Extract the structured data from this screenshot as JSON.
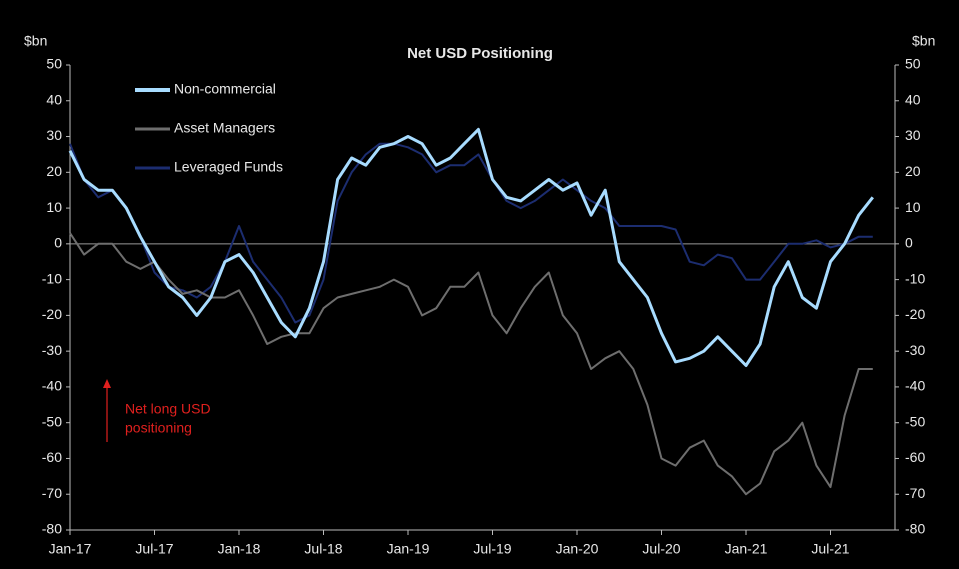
{
  "chart_data": {
    "type": "line",
    "title": "Net USD Positioning",
    "ylabel": "$bn",
    "y2label": "$bn",
    "x": [
      "Jan-17",
      "Feb-17",
      "Mar-17",
      "Apr-17",
      "May-17",
      "Jun-17",
      "Jul-17",
      "Aug-17",
      "Sep-17",
      "Oct-17",
      "Nov-17",
      "Dec-17",
      "Jan-18",
      "Feb-18",
      "Mar-18",
      "Apr-18",
      "May-18",
      "Jun-18",
      "Jul-18",
      "Aug-18",
      "Sep-18",
      "Oct-18",
      "Nov-18",
      "Dec-18",
      "Jan-19",
      "Feb-19",
      "Mar-19",
      "Apr-19",
      "May-19",
      "Jun-19",
      "Jul-19",
      "Aug-19",
      "Sep-19",
      "Oct-19",
      "Nov-19",
      "Dec-19",
      "Jan-20",
      "Feb-20",
      "Mar-20",
      "Apr-20",
      "May-20",
      "Jun-20",
      "Jul-20",
      "Aug-20",
      "Sep-20",
      "Oct-20",
      "Nov-20",
      "Dec-20",
      "Jan-21",
      "Feb-21",
      "Mar-21",
      "Apr-21",
      "May-21",
      "Jun-21",
      "Jul-21",
      "Aug-21",
      "Sep-21",
      "Oct-21"
    ],
    "xticks": [
      "Jan-17",
      "Jul-17",
      "Jan-18",
      "Jul-18",
      "Jan-19",
      "Jul-19",
      "Jan-20",
      "Jul-20",
      "Jan-21",
      "Jul-21"
    ],
    "series": [
      {
        "name": "Non-commercial",
        "color": "#a8dcff",
        "width": 3,
        "values": [
          26,
          18,
          15,
          15,
          10,
          2,
          -5,
          -12,
          -15,
          -20,
          -15,
          -5,
          -3,
          -8,
          -15,
          -22,
          -26,
          -18,
          -5,
          18,
          24,
          22,
          27,
          28,
          30,
          28,
          22,
          24,
          28,
          32,
          18,
          13,
          12,
          15,
          18,
          15,
          17,
          8,
          15,
          -5,
          -10,
          -15,
          -25,
          -33,
          -32,
          -30,
          -26,
          -30,
          -34,
          -28,
          -12,
          -5,
          -15,
          -18,
          -5,
          0,
          8,
          13
        ]
      },
      {
        "name": "Asset Managers",
        "color": "#6e6e6e",
        "width": 2,
        "values": [
          3,
          -3,
          0,
          0,
          -5,
          -7,
          -5,
          -10,
          -14,
          -13,
          -15,
          -15,
          -13,
          -20,
          -28,
          -26,
          -25,
          -25,
          -18,
          -15,
          -14,
          -13,
          -12,
          -10,
          -12,
          -20,
          -18,
          -12,
          -12,
          -8,
          -20,
          -25,
          -18,
          -12,
          -8,
          -20,
          -25,
          -35,
          -32,
          -30,
          -35,
          -45,
          -60,
          -62,
          -57,
          -55,
          -62,
          -65,
          -70,
          -67,
          -58,
          -55,
          -50,
          -62,
          -68,
          -48,
          -35,
          -35
        ]
      },
      {
        "name": "Leveraged Funds",
        "color": "#1c2d70",
        "width": 2,
        "values": [
          28,
          18,
          13,
          15,
          10,
          2,
          -8,
          -12,
          -13,
          -15,
          -12,
          -5,
          5,
          -5,
          -10,
          -15,
          -22,
          -20,
          -10,
          12,
          20,
          25,
          28,
          28,
          27,
          25,
          20,
          22,
          22,
          25,
          18,
          12,
          10,
          12,
          15,
          18,
          15,
          12,
          10,
          5,
          5,
          5,
          5,
          4,
          -5,
          -6,
          -3,
          -4,
          -10,
          -10,
          -5,
          0,
          0,
          1,
          -1,
          0,
          2,
          2
        ]
      }
    ],
    "ylim": [
      -80,
      50
    ],
    "yticks": [
      -80,
      -70,
      -60,
      -50,
      -40,
      -30,
      -20,
      -10,
      0,
      10,
      20,
      30,
      40,
      50
    ],
    "y2lim": [
      -80,
      50
    ],
    "y2ticks": [
      -80,
      -70,
      -60,
      -50,
      -40,
      -30,
      -20,
      -10,
      0,
      10,
      20,
      30,
      40,
      50
    ],
    "annotation": [
      "Net long USD",
      "positioning"
    ],
    "annotation_color": "#e0201e",
    "legend": "upper left"
  }
}
